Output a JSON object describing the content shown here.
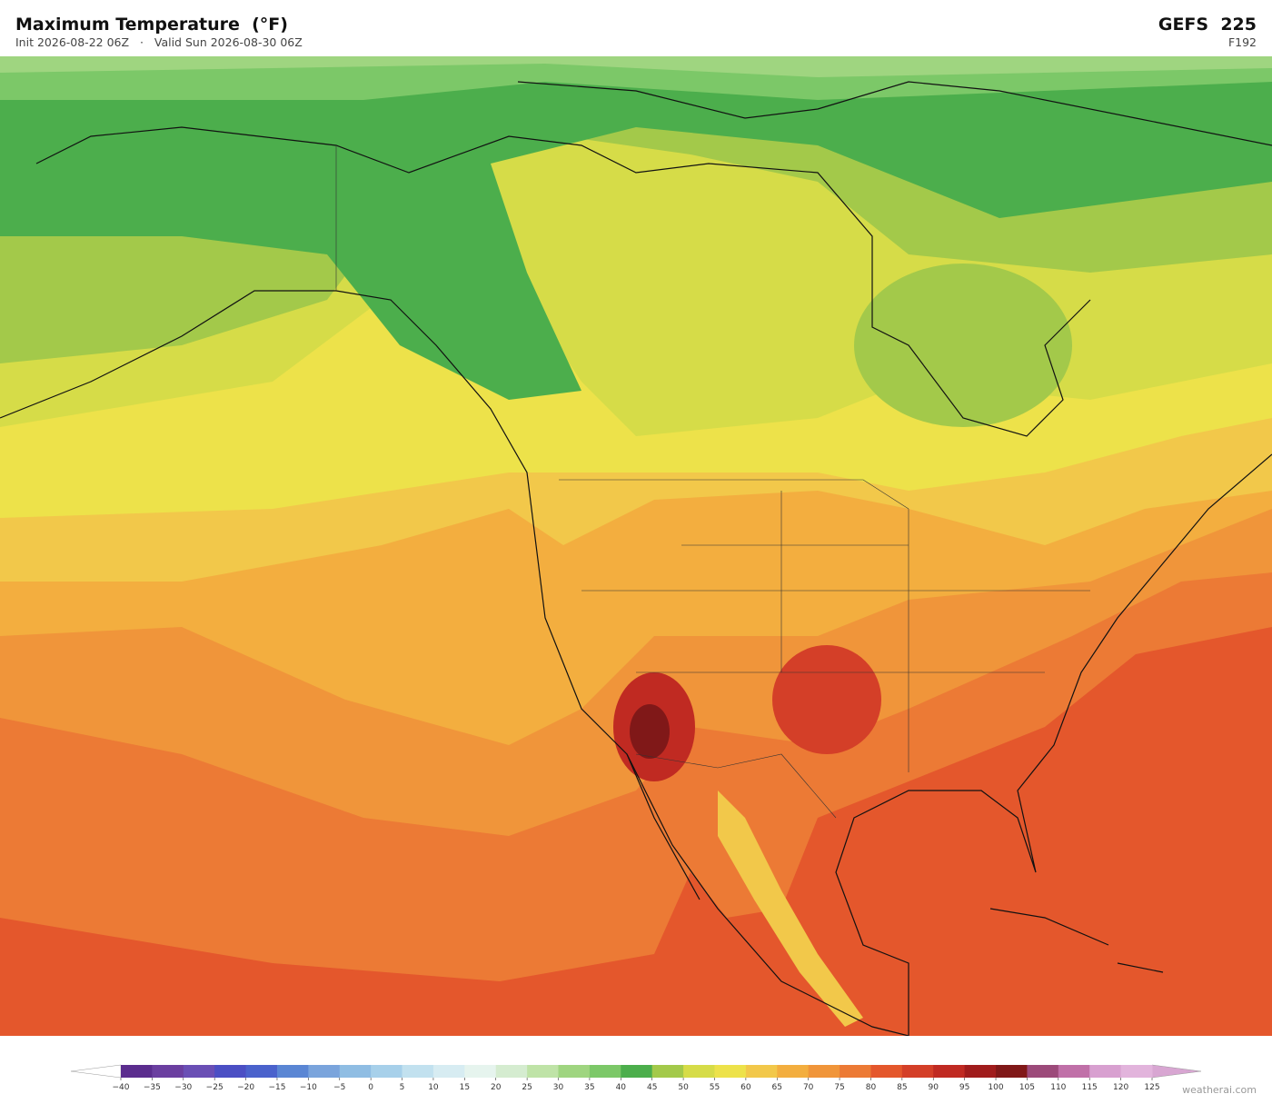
{
  "header": {
    "title": "Maximum Temperature  (°F)",
    "init": "Init 2026-08-22 06Z",
    "separator": "·",
    "valid": "Valid Sun 2026-08-30 06Z",
    "model": "GEFS  225",
    "forecast_hour": "F192"
  },
  "colorbar": {
    "ticks": [
      {
        "value": -40,
        "label": "−40"
      },
      {
        "value": -35,
        "label": "−35"
      },
      {
        "value": -30,
        "label": "−30"
      },
      {
        "value": -25,
        "label": "−25"
      },
      {
        "value": -20,
        "label": "−20"
      },
      {
        "value": -15,
        "label": "−15"
      },
      {
        "value": -10,
        "label": "−10"
      },
      {
        "value": -5,
        "label": "−5"
      },
      0,
      5,
      10,
      15,
      20,
      25,
      30,
      35,
      40,
      45,
      50,
      55,
      60,
      65,
      70,
      75,
      80,
      85,
      90,
      95,
      100,
      105,
      110,
      115,
      120,
      125
    ],
    "colors": [
      "#5b2d8e",
      "#6b3fa0",
      "#6a4fb5",
      "#4b4fc4",
      "#4a62cc",
      "#5a86d4",
      "#7aa4dc",
      "#8fbde3",
      "#a7d0ea",
      "#c2e1ef",
      "#d7ecf2",
      "#e6f4ee",
      "#d5ecd0",
      "#bfe3a7",
      "#9fd580",
      "#7cc868",
      "#4cae4c",
      "#a3c94a",
      "#d6dc48",
      "#ede24a",
      "#f2c84a",
      "#f3ae3f",
      "#f0953a",
      "#ec7a35",
      "#e4572c",
      "#d43f28",
      "#c02a22",
      "#a01c1c",
      "#801818",
      "#9c4a7a",
      "#c070a8",
      "#d8a0d0",
      "#e2b4dc"
    ],
    "under_color": "#ffffff",
    "over_color": "#d8a6d2"
  },
  "footer": {
    "credit": "weatherai.com"
  }
}
